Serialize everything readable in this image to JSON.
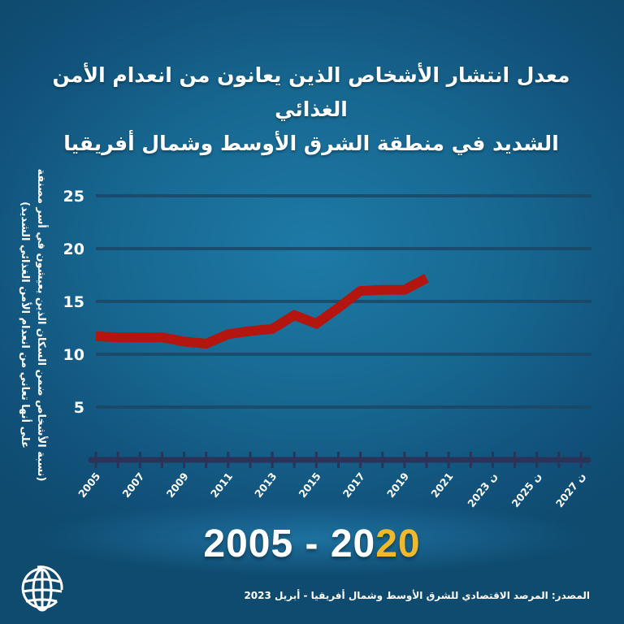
{
  "title": {
    "line1": "معدل انتشار الأشخاص الذين يعانون من انعدام الأمن الغذائي",
    "line2": "الشديد في منطقة الشرق الأوسط وشمال أفريقيا"
  },
  "y_axis_label": {
    "line1": "(نسبة الأشخاص ضمن السكان الذين يعيشون في أسر مصنفة",
    "line2": "على أنها تعاني من انعدام الأمن الغذائي الشديد)"
  },
  "y_ticks": [
    "25",
    "20",
    "15",
    "10",
    "5"
  ],
  "x_ticks": [
    "2005",
    "2007",
    "2009",
    "2011",
    "2013",
    "2015",
    "2017",
    "2019",
    "2021",
    "ن 2023",
    "ن 2025",
    "ن 2027"
  ],
  "range_label": {
    "start": "2005 - 20",
    "highlight": "20"
  },
  "source": "المصدر: المرصد الاقتصادي للشرق الأوسط وشمال أفريقيا - أبريل 2023",
  "logo": "world-bank-globe-icon",
  "colors": {
    "background": "#176891",
    "line": "#b3150f",
    "gridline": "#1c4766",
    "axis": "#2b3358",
    "highlight": "#f0b92b",
    "text": "#ffffff"
  },
  "chart_data": {
    "type": "line",
    "title": "معدل انتشار الأشخاص الذين يعانون من انعدام الأمن الغذائي الشديد في منطقة الشرق الأوسط وشمال أفريقيا",
    "xlabel": "",
    "ylabel": "(نسبة الأشخاص ضمن السكان الذين يعيشون في أسر مصنفة على أنها تعاني من انعدام الأمن الغذائي الشديد)",
    "x": [
      2005,
      2006,
      2007,
      2008,
      2009,
      2010,
      2011,
      2012,
      2013,
      2014,
      2015,
      2016,
      2017,
      2018,
      2019,
      2020
    ],
    "series": [
      {
        "name": "انعدام الأمن الغذائي الشديد (%)",
        "values": [
          11.7,
          11.6,
          11.6,
          11.6,
          11.2,
          11.0,
          11.9,
          12.2,
          12.4,
          13.7,
          12.9,
          14.4,
          16.0,
          16.1,
          16.1,
          17.2
        ]
      }
    ],
    "x_range": [
      2005,
      2027
    ],
    "x_tick_labels": [
      "2005",
      "2007",
      "2009",
      "2011",
      "2013",
      "2015",
      "2017",
      "2019",
      "2021",
      "ن 2023",
      "ن 2025",
      "ن 2027"
    ],
    "ylim": [
      0,
      25
    ],
    "y_ticks": [
      5,
      10,
      15,
      20,
      25
    ],
    "grid": true,
    "legend": "none",
    "annotation": "2005 - 2020"
  }
}
